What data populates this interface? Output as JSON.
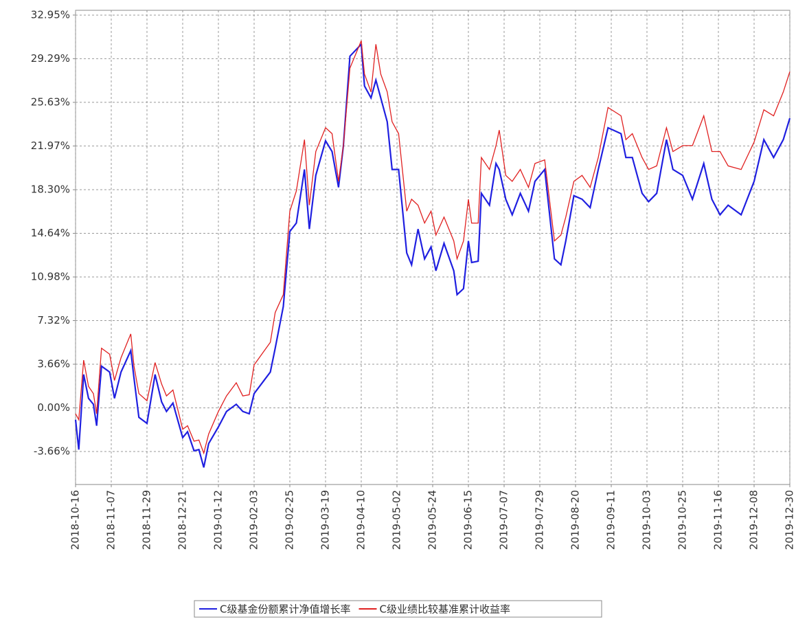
{
  "chart_data": {
    "type": "line",
    "grid": true,
    "legend": "bottom",
    "xlim": [
      "2018-10-16",
      "2019-12-30"
    ],
    "xticks": [
      "2018-10-16",
      "2018-11-07",
      "2018-11-29",
      "2018-12-21",
      "2019-01-12",
      "2019-02-03",
      "2019-02-25",
      "2019-03-19",
      "2019-04-10",
      "2019-05-02",
      "2019-05-24",
      "2019-06-15",
      "2019-07-07",
      "2019-07-29",
      "2019-08-20",
      "2019-09-11",
      "2019-10-03",
      "2019-10-25",
      "2019-11-16",
      "2019-12-08",
      "2019-12-30"
    ],
    "ylim": [
      -6.43,
      33.35
    ],
    "yticks": [
      {
        "value": -3.66,
        "label": "-3.66%"
      },
      {
        "value": 0,
        "label": "0.00%"
      },
      {
        "value": 3.66,
        "label": "3.66%"
      },
      {
        "value": 7.32,
        "label": "7.32%"
      },
      {
        "value": 10.98,
        "label": "10.98%"
      },
      {
        "value": 14.64,
        "label": "14.64%"
      },
      {
        "value": 18.3,
        "label": "18.30%"
      },
      {
        "value": 21.97,
        "label": "21.97%"
      },
      {
        "value": 25.63,
        "label": "25.63%"
      },
      {
        "value": 29.29,
        "label": "29.29%"
      },
      {
        "value": 32.95,
        "label": "32.95%"
      }
    ],
    "x": [
      "2018-10-16",
      "2018-10-18",
      "2018-10-21",
      "2018-10-24",
      "2018-10-27",
      "2018-10-29",
      "2018-11-01",
      "2018-11-06",
      "2018-11-09",
      "2018-11-13",
      "2018-11-19",
      "2018-11-21",
      "2018-11-24",
      "2018-11-29",
      "2018-12-04",
      "2018-12-08",
      "2018-12-11",
      "2018-12-15",
      "2018-12-21",
      "2018-12-24",
      "2018-12-28",
      "2018-12-31",
      "2019-01-03",
      "2019-01-06",
      "2019-01-12",
      "2019-01-17",
      "2019-01-23",
      "2019-01-27",
      "2019-01-31",
      "2019-02-03",
      "2019-02-13",
      "2019-02-16",
      "2019-02-21",
      "2019-02-25",
      "2019-03-01",
      "2019-03-06",
      "2019-03-09",
      "2019-03-13",
      "2019-03-19",
      "2019-03-23",
      "2019-03-27",
      "2019-03-30",
      "2019-04-03",
      "2019-04-10",
      "2019-04-12",
      "2019-04-16",
      "2019-04-19",
      "2019-04-22",
      "2019-04-26",
      "2019-04-29",
      "2019-05-03",
      "2019-05-08",
      "2019-05-11",
      "2019-05-15",
      "2019-05-19",
      "2019-05-23",
      "2019-05-26",
      "2019-05-31",
      "2019-06-06",
      "2019-06-08",
      "2019-06-12",
      "2019-06-15",
      "2019-06-17",
      "2019-06-21",
      "2019-06-23",
      "2019-06-28",
      "2019-07-02",
      "2019-07-04",
      "2019-07-08",
      "2019-07-12",
      "2019-07-17",
      "2019-07-22",
      "2019-07-26",
      "2019-08-01",
      "2019-08-07",
      "2019-08-11",
      "2019-08-14",
      "2019-08-19",
      "2019-08-24",
      "2019-08-29",
      "2019-09-03",
      "2019-09-09",
      "2019-09-17",
      "2019-09-20",
      "2019-09-24",
      "2019-09-30",
      "2019-10-04",
      "2019-10-09",
      "2019-10-15",
      "2019-10-19",
      "2019-10-25",
      "2019-10-31",
      "2019-11-07",
      "2019-11-12",
      "2019-11-17",
      "2019-11-22",
      "2019-11-30",
      "2019-12-08",
      "2019-12-14",
      "2019-12-20",
      "2019-12-26",
      "2019-12-30"
    ],
    "series": [
      {
        "name": "C级基金份额累计净值增长率",
        "color": "#1f1fe0",
        "width": 2.2,
        "values": [
          -1,
          -3.5,
          2.8,
          0.8,
          0.3,
          -1.5,
          3.5,
          3,
          0.8,
          3,
          4.8,
          2.5,
          -0.8,
          -1.3,
          2.8,
          0.5,
          -0.3,
          0.4,
          -2.5,
          -2,
          -3.6,
          -3.5,
          -5,
          -3,
          -1.6,
          -0.3,
          0.3,
          -0.3,
          -0.5,
          1.2,
          3,
          5,
          8.5,
          14.8,
          15.5,
          20,
          15,
          19.5,
          22.4,
          21.5,
          18.5,
          22,
          29.5,
          30.5,
          27,
          26,
          27.5,
          26,
          24,
          20,
          20,
          13,
          12,
          15,
          12.5,
          13.5,
          11.5,
          13.8,
          11.5,
          9.5,
          10,
          14,
          12.2,
          12.3,
          18,
          17,
          20.5,
          20,
          17.5,
          16.2,
          18,
          16.5,
          19,
          20,
          12.5,
          12,
          14,
          17.8,
          17.5,
          16.8,
          20,
          23.5,
          23,
          21,
          21,
          18,
          17.3,
          18,
          22.5,
          20,
          19.5,
          17.5,
          20.5,
          17.5,
          16.2,
          17,
          16.2,
          19,
          22.5,
          21,
          22.5,
          24.3
        ]
      },
      {
        "name": "C级业绩比较基准累计收益率",
        "color": "#e02020",
        "width": 1.3,
        "values": [
          -0.5,
          -1,
          4,
          1.8,
          1.2,
          -0.5,
          5,
          4.5,
          2.3,
          4.2,
          6.2,
          3.5,
          1.2,
          0.6,
          3.8,
          2,
          1,
          1.5,
          -1.8,
          -1.5,
          -2.8,
          -2.7,
          -3.8,
          -2.2,
          -0.3,
          1,
          2.1,
          1,
          1.1,
          3.6,
          5.5,
          8,
          9.5,
          16.5,
          18.2,
          22.5,
          17,
          21.5,
          23.5,
          23,
          19,
          22,
          28.5,
          30.8,
          28,
          26.5,
          30.5,
          28,
          26.5,
          24,
          23,
          16.5,
          17.5,
          17,
          15.5,
          16.5,
          14.5,
          16,
          14,
          12.5,
          14,
          17.5,
          15.5,
          15.5,
          21,
          20,
          22,
          23.3,
          19.5,
          19,
          20,
          18.5,
          20.5,
          20.8,
          14,
          14.5,
          16,
          19,
          19.5,
          18.5,
          21,
          25.2,
          24.5,
          22.5,
          23,
          21,
          20,
          20.3,
          23.5,
          21.5,
          22,
          22,
          24.5,
          21.5,
          21.5,
          20.3,
          20,
          22.3,
          25,
          24.5,
          26.5,
          28.2
        ]
      }
    ]
  }
}
